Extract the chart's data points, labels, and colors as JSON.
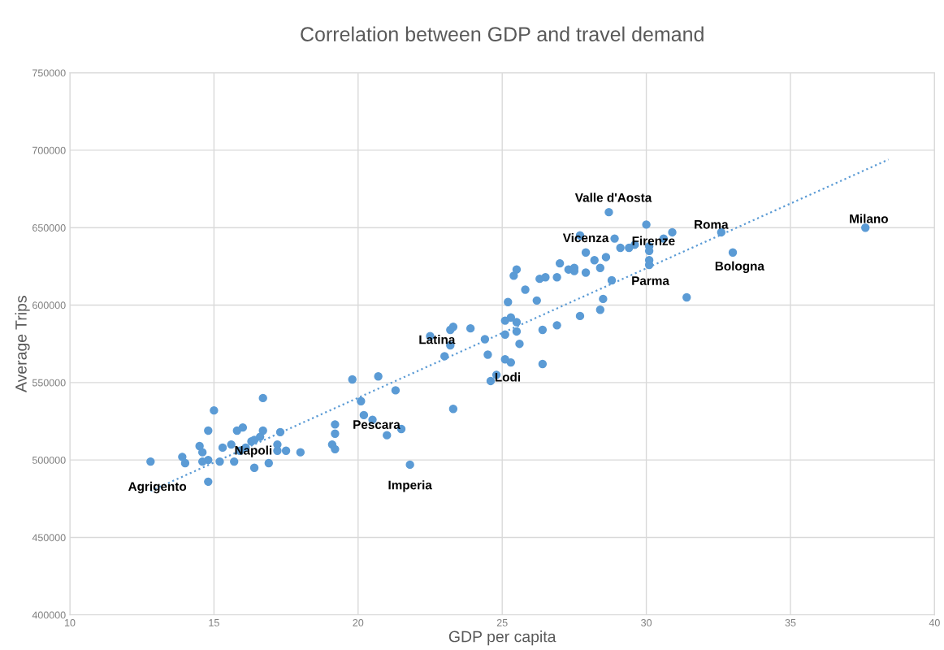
{
  "chart_data": {
    "type": "scatter",
    "title": "Correlation between GDP and travel demand",
    "xlabel": "GDP per capita",
    "ylabel": "Average Trips",
    "xlim": [
      10,
      40
    ],
    "xticks": [
      10,
      15,
      20,
      25,
      30,
      35,
      40
    ],
    "ylim": [
      400000,
      750000
    ],
    "yticks": [
      400000,
      450000,
      500000,
      550000,
      600000,
      650000,
      700000,
      750000
    ],
    "grid": true,
    "legend": false,
    "marker": "circle",
    "series": [
      {
        "color": "#5b9bd5",
        "x": [
          12.8,
          13.9,
          14.0,
          14.5,
          14.6,
          14.6,
          14.8,
          14.8,
          15.0,
          14.8,
          15.2,
          15.3,
          15.6,
          15.7,
          15.8,
          15.9,
          16.0,
          16.1,
          16.3,
          16.4,
          16.4,
          16.6,
          16.7,
          16.7,
          16.9,
          17.2,
          17.2,
          17.3,
          17.5,
          18.0,
          19.2,
          19.2,
          19.1,
          19.2,
          19.8,
          20.1,
          20.2,
          20.5,
          20.7,
          21.0,
          21.3,
          21.5,
          21.8,
          22.5,
          23.2,
          23.3,
          23.2,
          23.0,
          23.9,
          23.3,
          24.4,
          24.5,
          24.6,
          24.8,
          25.1,
          25.3,
          25.5,
          25.1,
          25.5,
          25.6,
          25.1,
          25.3,
          26.4,
          26.4,
          26.9,
          27.7,
          25.2,
          25.8,
          26.2,
          25.4,
          25.5,
          26.3,
          26.5,
          26.9,
          27.3,
          27.5,
          27.5,
          28.7,
          30.0,
          30.9,
          27.7,
          28.9,
          30.6,
          29.6,
          29.4,
          29.1,
          30.1,
          30.1,
          27.9,
          28.6,
          28.2,
          30.1,
          30.1,
          27.0,
          27.9,
          28.4,
          28.8,
          28.5,
          28.4,
          31.4,
          32.6,
          33.0,
          37.6
        ],
        "values": [
          499000,
          502000,
          498000,
          509000,
          505000,
          499000,
          500000,
          486000,
          532000,
          519000,
          499000,
          508000,
          510000,
          499000,
          519000,
          506000,
          521000,
          508000,
          512000,
          513000,
          495000,
          515000,
          519000,
          540000,
          498000,
          510000,
          506000,
          518000,
          506000,
          505000,
          523000,
          517000,
          510000,
          507000,
          552000,
          538000,
          529000,
          526000,
          554000,
          516000,
          545000,
          520000,
          497000,
          580000,
          584000,
          586000,
          574000,
          567000,
          585000,
          533000,
          578000,
          568000,
          551000,
          555000,
          590000,
          592000,
          589000,
          581000,
          583000,
          575000,
          565000,
          563000,
          562000,
          584000,
          587000,
          593000,
          602000,
          610000,
          603000,
          619000,
          623000,
          617000,
          618000,
          618000,
          623000,
          622000,
          624000,
          660000,
          652000,
          647000,
          645000,
          643000,
          643000,
          639000,
          637000,
          637000,
          638000,
          635000,
          634000,
          631000,
          629000,
          629000,
          626000,
          627000,
          621000,
          624000,
          616000,
          604000,
          597000,
          605000,
          647000,
          634000,
          650000
        ]
      },
      {
        "type": "line",
        "color": "#5b9bd5",
        "line_style": "dotted",
        "marker": "none",
        "x": [
          12.8,
          38.4
        ],
        "values": [
          480000,
          694000
        ]
      }
    ],
    "annotations": [
      {
        "text": "Agrigento",
        "x": 12.8,
        "y": 499000
      },
      {
        "text": "Napoli",
        "x": 15.7,
        "y": 499000
      },
      {
        "text": "Pescara",
        "x": 21.5,
        "y": 520000
      },
      {
        "text": "Imperia",
        "x": 21.8,
        "y": 497000
      },
      {
        "text": "Latina",
        "x": 22.5,
        "y": 580000
      },
      {
        "text": "Lodi",
        "x": 24.8,
        "y": 555000
      },
      {
        "text": "Valle d'Aosta",
        "x": 28.7,
        "y": 660000
      },
      {
        "text": "Vicenza",
        "x": 27.9,
        "y": 634000
      },
      {
        "text": "Firenze",
        "x": 30.6,
        "y": 643000
      },
      {
        "text": "Parma",
        "x": 30.1,
        "y": 626000
      },
      {
        "text": "Roma",
        "x": 32.6,
        "y": 647000
      },
      {
        "text": "Bologna",
        "x": 33.0,
        "y": 634000
      },
      {
        "text": "Milano",
        "x": 37.6,
        "y": 650000
      }
    ]
  }
}
